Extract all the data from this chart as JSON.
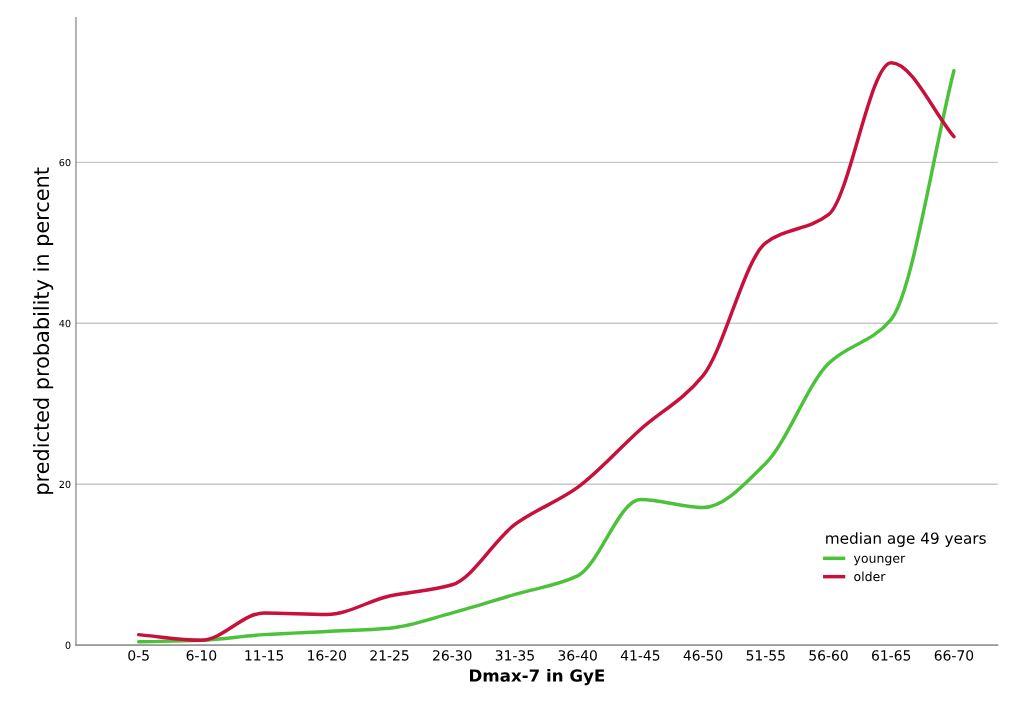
{
  "chart_data": {
    "type": "line",
    "xlabel": "Dmax-7 in GyE",
    "ylabel": "predicted probability in percent",
    "legend_title": "median age 49 years",
    "categories": [
      "0-5",
      "6-10",
      "11-15",
      "16-20",
      "21-25",
      "26-30",
      "31-35",
      "36-40",
      "41-45",
      "46-50",
      "51-55",
      "56-60",
      "61-65",
      "66-70"
    ],
    "series": [
      {
        "name": "younger",
        "color": "#4cc23a",
        "values": [
          0.4,
          0.6,
          1.3,
          1.7,
          2.1,
          4.0,
          6.3,
          8.6,
          18.1,
          17.1,
          22.6,
          35,
          40.5,
          71.4
        ]
      },
      {
        "name": "older",
        "color": "#c8103c",
        "values": [
          1.3,
          0.6,
          4.0,
          3.8,
          6.1,
          7.5,
          15,
          19.6,
          26.8,
          33.5,
          50,
          53.5,
          72.4,
          63.2
        ]
      }
    ],
    "ylim": [
      0,
      78
    ],
    "yticks": [
      0,
      20,
      40,
      60
    ],
    "grid": "y",
    "legend": "bottom right",
    "marker": "none",
    "line_style": "solid"
  }
}
